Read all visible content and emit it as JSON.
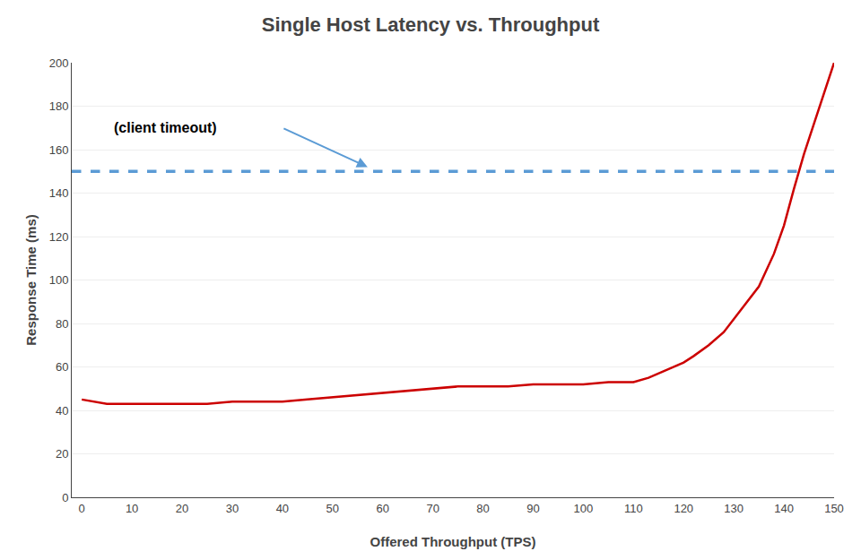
{
  "chart_data": {
    "type": "line",
    "title": "Single Host Latency vs. Throughput",
    "x_label": "Offered Throughput (TPS)",
    "y_label": "Response Time (ms)",
    "x": [
      0,
      5,
      10,
      15,
      20,
      25,
      30,
      35,
      40,
      45,
      50,
      55,
      60,
      65,
      70,
      75,
      80,
      85,
      90,
      95,
      100,
      105,
      110,
      113,
      115,
      117,
      120,
      122,
      125,
      128,
      130,
      132,
      135,
      138,
      140,
      142,
      144,
      146,
      148,
      150
    ],
    "series": [
      {
        "color": "#cc0000",
        "line_style": "solid",
        "values": [
          45,
          43,
          43,
          43,
          43,
          43,
          44,
          44,
          44,
          45,
          46,
          47,
          48,
          49,
          50,
          51,
          51,
          51,
          52,
          52,
          52,
          53,
          53,
          55,
          57,
          59,
          62,
          65,
          70,
          76,
          82,
          88,
          97,
          112,
          125,
          142,
          158,
          172,
          186,
          200
        ]
      }
    ],
    "reference_line": {
      "value": 150,
      "color": "#5b9bd5",
      "line_style": "dashed"
    },
    "annotations": [
      {
        "text": "(client timeout)",
        "x": 6,
        "y": 170,
        "arrow": {
          "from": [
            40,
            170
          ],
          "to": [
            57,
            152
          ],
          "color": "#5b9bd5"
        }
      }
    ],
    "xlim": [
      -2,
      150
    ],
    "ylim": [
      0,
      200
    ],
    "xticks": [
      0,
      10,
      20,
      30,
      40,
      50,
      60,
      70,
      80,
      90,
      100,
      110,
      120,
      130,
      140,
      150
    ],
    "yticks": [
      0,
      20,
      40,
      60,
      80,
      100,
      120,
      140,
      160,
      180,
      200
    ],
    "grid": "y"
  }
}
